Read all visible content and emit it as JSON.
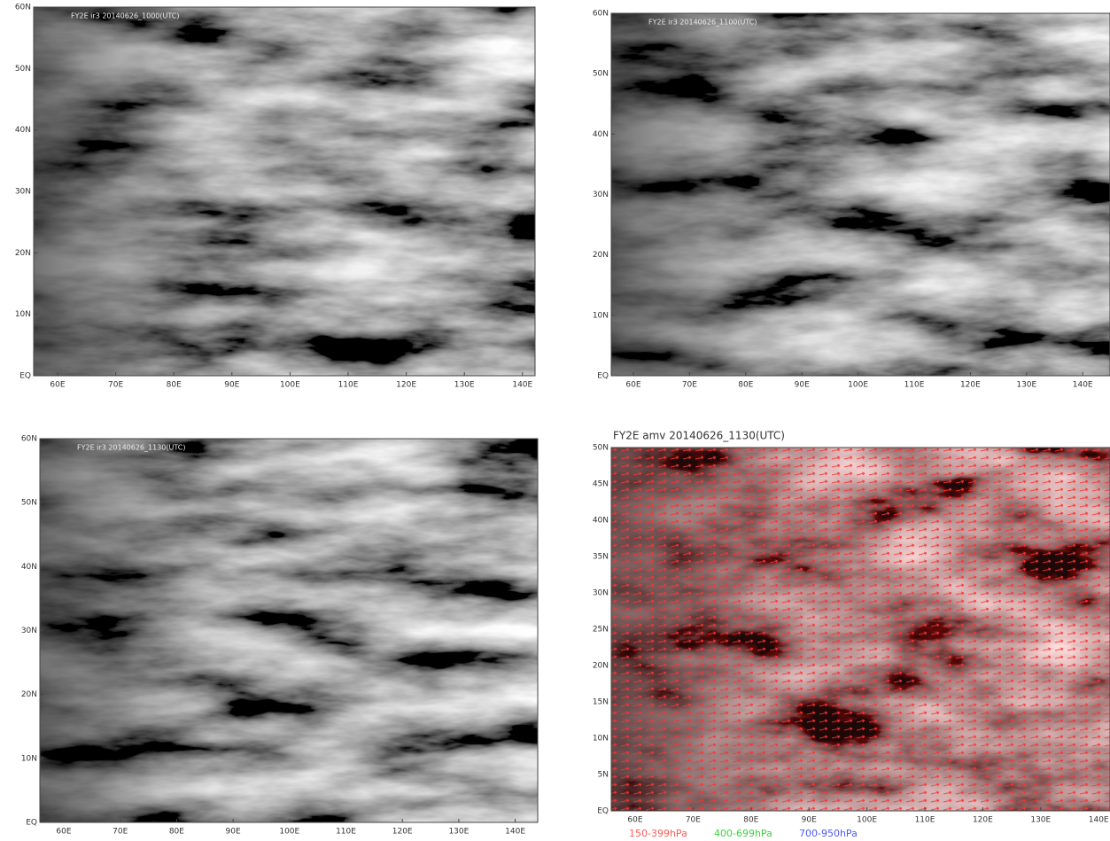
{
  "panels": [
    {
      "title": "FY2E ir3 20140626_1000(UTC)",
      "lat_labels": [
        "60N",
        "50N",
        "40N",
        "30N",
        "20N",
        "10N",
        "EQ"
      ],
      "lon_labels": [
        "60E",
        "70E",
        "80E",
        "90E",
        "100E",
        "110E",
        "120E",
        "130E",
        "140E"
      ]
    },
    {
      "title": "FY2E ir3 20140626_1100(UTC)",
      "lat_labels": [
        "60N",
        "50N",
        "40N",
        "30N",
        "20N",
        "10N",
        "EQ"
      ],
      "lon_labels": [
        "60E",
        "70E",
        "80E",
        "90E",
        "100E",
        "110E",
        "120E",
        "130E",
        "140E"
      ]
    },
    {
      "title": "FY2E ir3 20140626_1130(UTC)",
      "lat_labels": [
        "60N",
        "50N",
        "40N",
        "30N",
        "20N",
        "10N",
        "EQ"
      ],
      "lon_labels": [
        "60E",
        "70E",
        "80E",
        "90E",
        "100E",
        "110E",
        "120E",
        "130E",
        "140E"
      ]
    },
    {
      "title": "FY2E amv 20140626_1130(UTC)",
      "lat_labels": [
        "50N",
        "45N",
        "40N",
        "35N",
        "30N",
        "25N",
        "20N",
        "15N",
        "10N",
        "5N",
        "EQ"
      ],
      "lon_labels": [
        "60E",
        "70E",
        "80E",
        "90E",
        "100E",
        "110E",
        "120E",
        "130E",
        "140E"
      ],
      "legend": [
        "150-399hPa",
        "400-699hPa",
        "700-950hPa"
      ]
    }
  ]
}
